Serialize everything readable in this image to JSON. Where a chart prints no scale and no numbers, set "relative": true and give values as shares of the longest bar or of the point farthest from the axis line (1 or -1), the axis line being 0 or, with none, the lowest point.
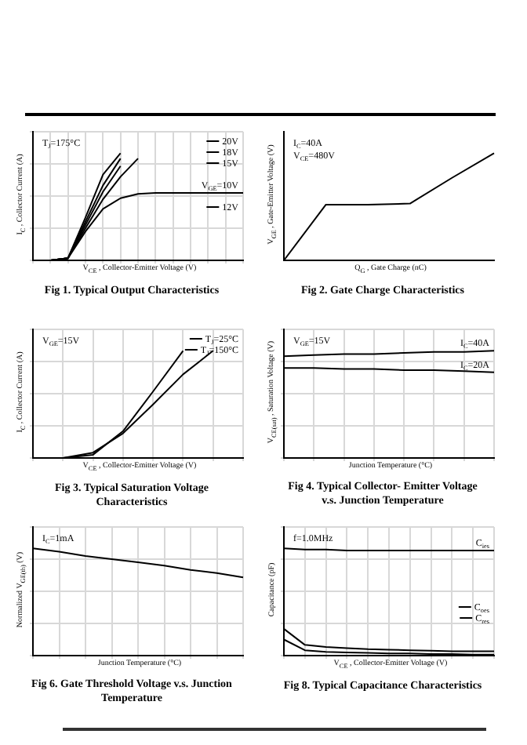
{
  "chart_data": [
    {
      "type": "line",
      "title": "Fig 1. Typical Output Characteristics",
      "xlabel": "V$_{CE}$ , Collector-Emitter Voltage (V)",
      "ylabel": "I$_{C}$ , Collector Current (A)",
      "relative": true,
      "grid": true,
      "legend": "top right",
      "annotations": [
        "T$_{J}$=175°C"
      ],
      "categories": [
        null,
        null,
        null,
        null,
        null,
        null,
        null,
        null,
        null,
        null,
        null,
        null,
        null
      ],
      "series": [
        {
          "name": "20V",
          "color": "#000000",
          "values": [
            0,
            0,
            0.02,
            0.4,
            0.8,
            1.0,
            null,
            null,
            null,
            null,
            null,
            null,
            null
          ]
        },
        {
          "name": "18V",
          "color": "#000000",
          "values": [
            0,
            0,
            0.02,
            0.36,
            0.7,
            0.95,
            null,
            null,
            null,
            null,
            null,
            null,
            null
          ]
        },
        {
          "name": "15V",
          "color": "#000000",
          "values": [
            0,
            0,
            0.02,
            0.33,
            0.64,
            0.88,
            null,
            null,
            null,
            null,
            null,
            null,
            null
          ]
        },
        {
          "name": "12V",
          "color": "#000000",
          "values": [
            0,
            0,
            0.02,
            0.3,
            0.57,
            0.78,
            0.95,
            null,
            null,
            null,
            null,
            null,
            null
          ]
        },
        {
          "name": "V$_{GE}$=10V",
          "color": "#000000",
          "values": [
            0,
            0,
            0.02,
            0.27,
            0.48,
            0.58,
            0.62,
            0.63,
            0.63,
            0.63,
            0.63,
            0.63,
            0.63
          ]
        }
      ]
    },
    {
      "type": "line",
      "title": "Fig 2. Gate Charge Characteristics",
      "xlabel": "Q$_{G}$ , Gate Charge (nC)",
      "ylabel": "V$_{GE}$ , Gate-Emitter Voltage (V)",
      "relative": true,
      "grid": false,
      "annotations": [
        "I$_{C}$=40A",
        "V$_{CE}$=480V"
      ],
      "categories": [
        null,
        null,
        null,
        null,
        null,
        null
      ],
      "series": [
        {
          "color": "#000000",
          "values": [
            0,
            0.52,
            0.52,
            0.53,
            0.77,
            1.0
          ]
        }
      ]
    },
    {
      "type": "line",
      "title": "Fig 3. Typical Saturation Voltage Characteristics",
      "xlabel": "V$_{CE}$ , Collector-Emitter Voltage (V)",
      "ylabel": "I$_{C}$ , Collector Current (A)",
      "relative": true,
      "grid": true,
      "legend": "top right",
      "annotations": [
        "V$_{GE}$=15V"
      ],
      "categories": [
        null,
        null,
        null,
        null,
        null,
        null,
        null,
        null
      ],
      "series": [
        {
          "name": "T$_{J}$=25°C",
          "color": "#000000",
          "values": [
            0,
            0,
            0.03,
            0.25,
            0.62,
            1.0,
            null,
            null
          ]
        },
        {
          "name": "T$_{J}$=150°C",
          "color": "#000000",
          "values": [
            0,
            0,
            0.05,
            0.23,
            0.5,
            0.78,
            1.0,
            null
          ]
        }
      ]
    },
    {
      "type": "line",
      "title": "Fig 4. Typical Collector- Emitter Voltage v.s. Junction Temperature",
      "xlabel": "Junction Temperature (°C)",
      "ylabel": "V$_{CE(sat)}$ , Saturation Voltage (V)",
      "relative": true,
      "grid": true,
      "annotations": [
        "V$_{GE}$=15V"
      ],
      "categories": [
        null,
        null,
        null,
        null,
        null,
        null,
        null,
        null
      ],
      "series": [
        {
          "name": "I$_{C}$=40A",
          "color": "#000000",
          "values": [
            0.95,
            0.96,
            0.97,
            0.97,
            0.98,
            0.99,
            0.99,
            1.0
          ]
        },
        {
          "name": "I$_{C}$=20A",
          "color": "#000000",
          "values": [
            0.84,
            0.84,
            0.83,
            0.83,
            0.82,
            0.82,
            0.81,
            0.8
          ]
        }
      ]
    },
    {
      "type": "line",
      "title": "Fig 6. Gate Threshold Voltage v.s. Junction Temperature",
      "xlabel": "Junction Temperature (°C)",
      "ylabel": "Normalized V$_{GE(th)}$ (V)",
      "relative": true,
      "grid": true,
      "annotations": [
        "I$_{C}$=1mA"
      ],
      "categories": [
        null,
        null,
        null,
        null,
        null,
        null,
        null,
        null,
        null
      ],
      "series": [
        {
          "color": "#000000",
          "values": [
            1.0,
            0.97,
            0.93,
            0.9,
            0.87,
            0.84,
            0.8,
            0.77,
            0.73
          ]
        }
      ]
    },
    {
      "type": "line",
      "title": "Fig 8. Typical Capacitance Characteristics",
      "xlabel": "V$_{CE}$ , Collector-Emitter Voltage (V)",
      "ylabel": "Capacitance (pF)",
      "relative": true,
      "grid": true,
      "legend": "bottom right",
      "annotations": [
        "f=1.0MHz"
      ],
      "categories": [
        null,
        null,
        null,
        null,
        null,
        null,
        null,
        null,
        null,
        null,
        null
      ],
      "series": [
        {
          "name": "C$_{ies}$",
          "color": "#000000",
          "values": [
            1.0,
            0.99,
            0.99,
            0.98,
            0.98,
            0.98,
            0.98,
            0.98,
            0.98,
            0.98,
            0.98
          ]
        },
        {
          "name": "C$_{oes}$",
          "color": "#000000",
          "values": [
            0.25,
            0.1,
            0.08,
            0.07,
            0.06,
            0.055,
            0.05,
            0.045,
            0.04,
            0.04,
            0.04
          ]
        },
        {
          "name": "C$_{res}$",
          "color": "#000000",
          "values": [
            0.15,
            0.05,
            0.035,
            0.03,
            0.025,
            0.02,
            0.02,
            0.015,
            0.015,
            0.01,
            0.01
          ]
        }
      ]
    }
  ]
}
